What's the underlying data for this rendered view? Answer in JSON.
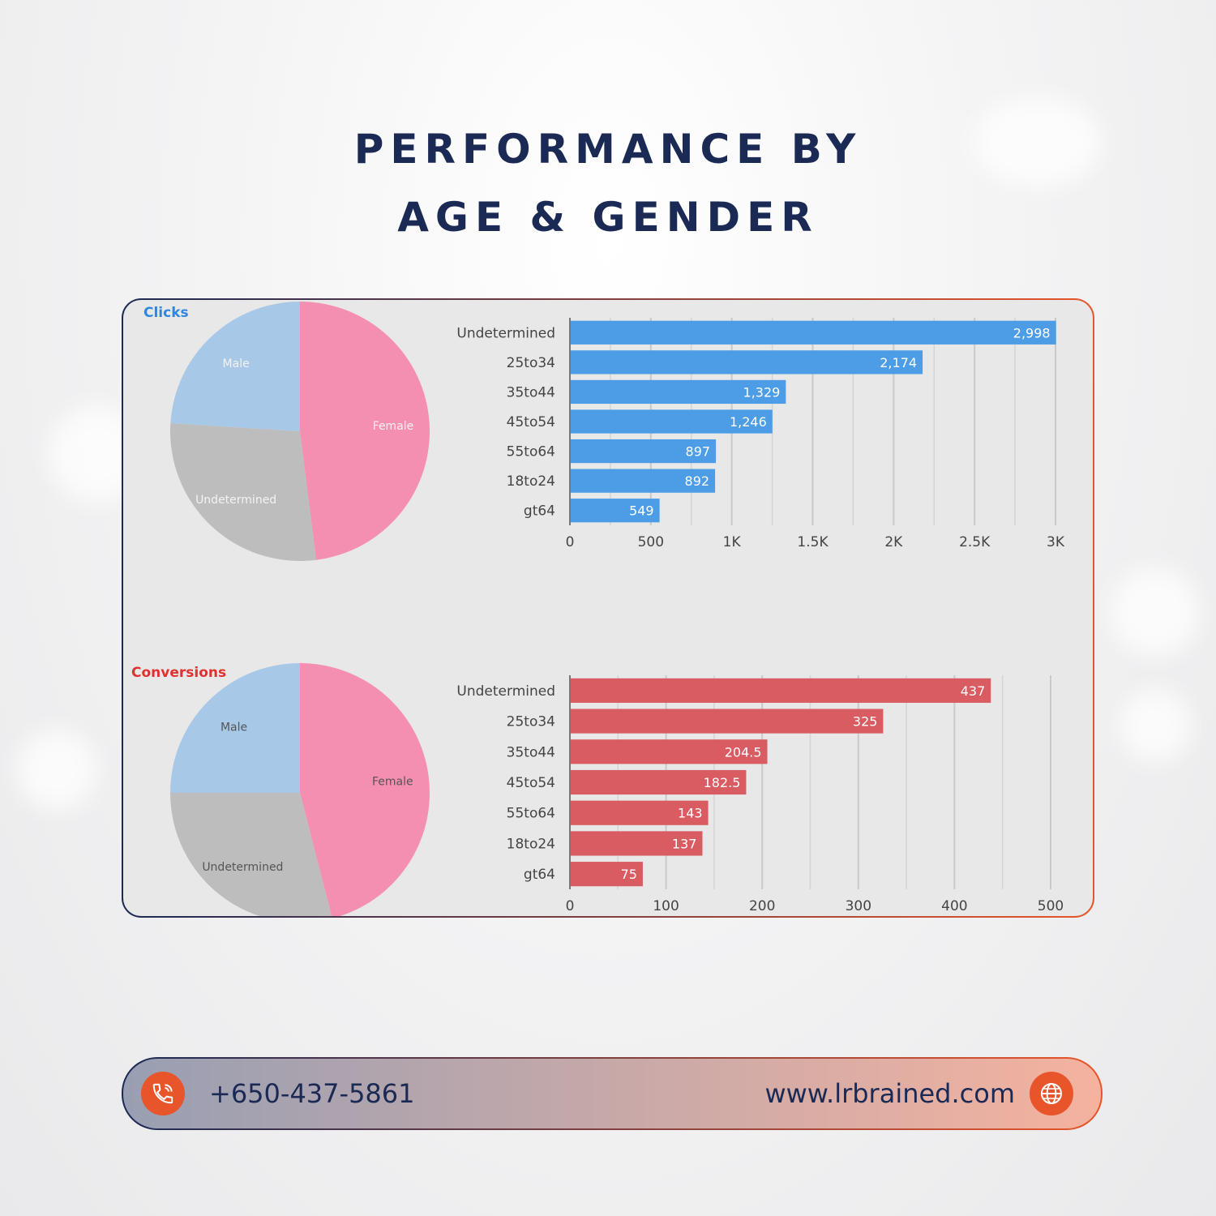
{
  "title": {
    "line1": "PERFORMANCE BY",
    "line2": "AGE & GENDER"
  },
  "colors": {
    "clicks": "#4d9de6",
    "conversions": "#d95c62",
    "male": "#a8c8e8",
    "female": "#f48fb1",
    "undetermined": "#bdbdbd",
    "accent": "#e8552a",
    "navy": "#1b2a55"
  },
  "footer": {
    "phone": "+650-437-5861",
    "website": "www.lrbrained.com",
    "phone_icon": "phone-icon",
    "web_icon": "globe-icon"
  },
  "chart_data": [
    {
      "type": "pie",
      "title": "Clicks",
      "categories": [
        "Female",
        "Undetermined",
        "Male"
      ],
      "values": [
        48,
        28,
        24
      ]
    },
    {
      "type": "bar",
      "orientation": "horizontal",
      "categories": [
        "Undetermined",
        "25to34",
        "35to44",
        "45to54",
        "55to64",
        "18to24",
        "gt64"
      ],
      "values": [
        2998,
        2174,
        1329,
        1246,
        897,
        892,
        549
      ],
      "value_labels": [
        "2,998",
        "2,174",
        "1,329",
        "1,246",
        "897",
        "892",
        "549"
      ],
      "xlim": [
        0,
        3000
      ],
      "xticks": [
        0,
        500,
        1000,
        1500,
        2000,
        2500,
        3000
      ],
      "xtick_labels": [
        "0",
        "500",
        "1K",
        "1.5K",
        "2K",
        "2.5K",
        "3K"
      ],
      "grid": true
    },
    {
      "type": "pie",
      "title": "Conversions",
      "categories": [
        "Female",
        "Undetermined",
        "Male"
      ],
      "values": [
        46,
        29,
        25
      ]
    },
    {
      "type": "bar",
      "orientation": "horizontal",
      "categories": [
        "Undetermined",
        "25to34",
        "35to44",
        "45to54",
        "55to64",
        "18to24",
        "gt64"
      ],
      "values": [
        437,
        325,
        204.5,
        182.5,
        143,
        137,
        75
      ],
      "value_labels": [
        "437",
        "325",
        "204.5",
        "182.5",
        "143",
        "137",
        "75"
      ],
      "xlim": [
        0,
        500
      ],
      "xticks": [
        0,
        100,
        200,
        300,
        400,
        500
      ],
      "xtick_labels": [
        "0",
        "100",
        "200",
        "300",
        "400",
        "500"
      ],
      "grid": true
    }
  ]
}
